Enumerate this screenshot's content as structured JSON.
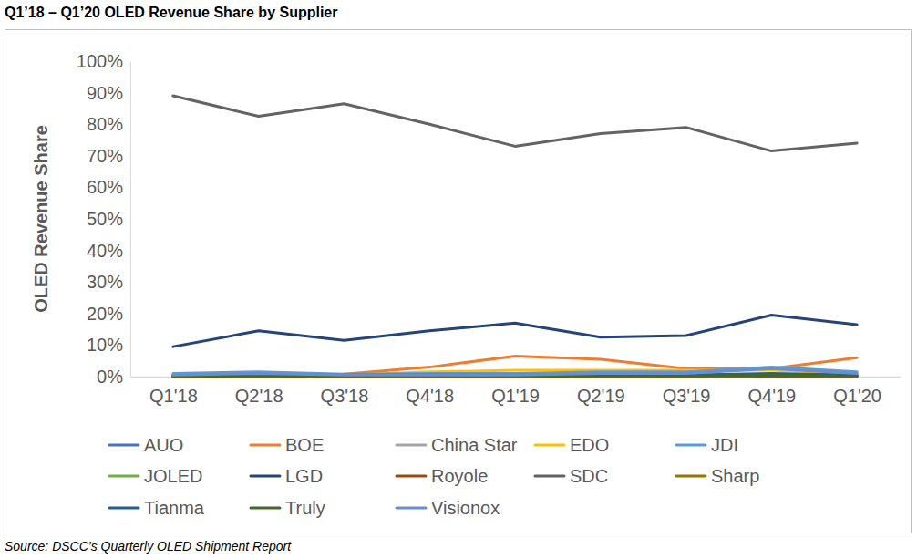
{
  "chart_data": {
    "type": "line",
    "title": "Q1’18 – Q1’20 OLED Revenue Share by Supplier",
    "y_label": "OLED Revenue Share",
    "source": "Source: DSCC’s Quarterly OLED Shipment Report",
    "categories": [
      "Q1'18",
      "Q2'18",
      "Q3'18",
      "Q4'18",
      "Q1'19",
      "Q2'19",
      "Q3'19",
      "Q4'19",
      "Q1'20"
    ],
    "ylim": [
      0,
      100
    ],
    "yticks": [
      {
        "value": 0,
        "label": "0%"
      },
      {
        "value": 10,
        "label": "10%"
      },
      {
        "value": 20,
        "label": "20%"
      },
      {
        "value": 30,
        "label": "30%"
      },
      {
        "value": 40,
        "label": "40%"
      },
      {
        "value": 50,
        "label": "50%"
      },
      {
        "value": 60,
        "label": "60%"
      },
      {
        "value": 70,
        "label": "70%"
      },
      {
        "value": 80,
        "label": "80%"
      },
      {
        "value": 90,
        "label": "90%"
      },
      {
        "value": 100,
        "label": "100%"
      }
    ],
    "grid": false,
    "legend": "bottom",
    "series": [
      {
        "name": "AUO",
        "color": "#4472c4",
        "values": [
          0.5,
          0.5,
          0.3,
          0.3,
          0.3,
          0.3,
          0.3,
          0.3,
          0.3
        ]
      },
      {
        "name": "BOE",
        "color": "#ed7d31",
        "values": [
          0.3,
          0.5,
          0.8,
          3,
          6.5,
          5.5,
          2.5,
          2.5,
          6
        ]
      },
      {
        "name": "China Star",
        "color": "#a5a5a5",
        "values": [
          0,
          0,
          0,
          0,
          0.2,
          0.5,
          0.5,
          0.5,
          0.5
        ]
      },
      {
        "name": "EDO",
        "color": "#ffc000",
        "values": [
          0.5,
          0.5,
          0.5,
          1.5,
          2,
          2,
          2,
          2,
          1
        ]
      },
      {
        "name": "JDI",
        "color": "#5b9bd5",
        "values": [
          1,
          1.5,
          0.8,
          1,
          1,
          1.5,
          1.5,
          3,
          1.5
        ]
      },
      {
        "name": "JOLED",
        "color": "#70ad47",
        "values": [
          0,
          0,
          0,
          0,
          0,
          0,
          0,
          0.2,
          0.2
        ]
      },
      {
        "name": "LGD",
        "color": "#264478",
        "values": [
          9.5,
          14.5,
          11.5,
          14.5,
          17,
          12.5,
          13,
          19.5,
          16.5
        ]
      },
      {
        "name": "Royole",
        "color": "#9e480e",
        "values": [
          0,
          0,
          0,
          0,
          0,
          0,
          0,
          0,
          0
        ]
      },
      {
        "name": "SDC",
        "color": "#636363",
        "values": [
          89,
          82.5,
          86.5,
          80,
          73,
          77,
          79,
          71.5,
          74
        ]
      },
      {
        "name": "Sharp",
        "color": "#997300",
        "values": [
          0,
          0,
          0,
          0,
          0,
          0,
          0,
          0.5,
          0.2
        ]
      },
      {
        "name": "Tianma",
        "color": "#255e91",
        "values": [
          0.3,
          0.5,
          0.5,
          0.5,
          0.5,
          0.5,
          0.5,
          1,
          0.5
        ]
      },
      {
        "name": "Truly",
        "color": "#43682b",
        "values": [
          0.2,
          0.2,
          0.2,
          0.2,
          0.2,
          0.2,
          0.2,
          0.5,
          0.2
        ]
      },
      {
        "name": "Visionox",
        "color": "#698ed0",
        "values": [
          0.5,
          1,
          0.5,
          0.5,
          0.5,
          1,
          1,
          2.5,
          1
        ]
      }
    ]
  }
}
